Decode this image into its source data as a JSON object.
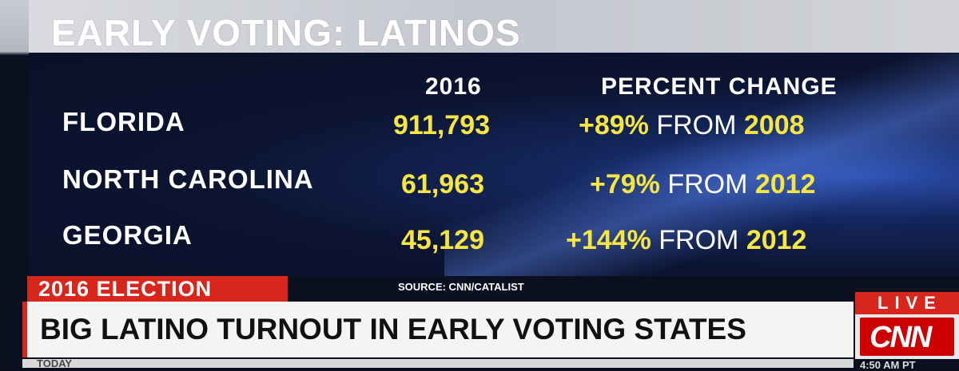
{
  "title": "EARLY VOTING: LATINOS",
  "table": {
    "headers": {
      "year": "2016",
      "change": "PERCENT CHANGE"
    },
    "rows": [
      {
        "state": "FLORIDA",
        "value": "911,793",
        "pct": "+89%",
        "from": "FROM",
        "year": "2008"
      },
      {
        "state": "NORTH CAROLINA",
        "value": "61,963",
        "pct": "+79%",
        "from": "FROM",
        "year": "2012"
      },
      {
        "state": "GEORGIA",
        "value": "45,129",
        "pct": "+144%",
        "from": "FROM",
        "year": "2012"
      }
    ]
  },
  "source": "SOURCE: CNN/CATALIST",
  "tag": "2016 ELECTION",
  "headline": "BIG LATINO TURNOUT IN EARLY VOTING STATES",
  "ticker": "TODAY",
  "live": "LIVE",
  "logo": "CNN",
  "clock": "4:50 AM PT",
  "colors": {
    "accent": "#d8261c",
    "highlight": "#f7e641",
    "panel": "#0c1431"
  }
}
